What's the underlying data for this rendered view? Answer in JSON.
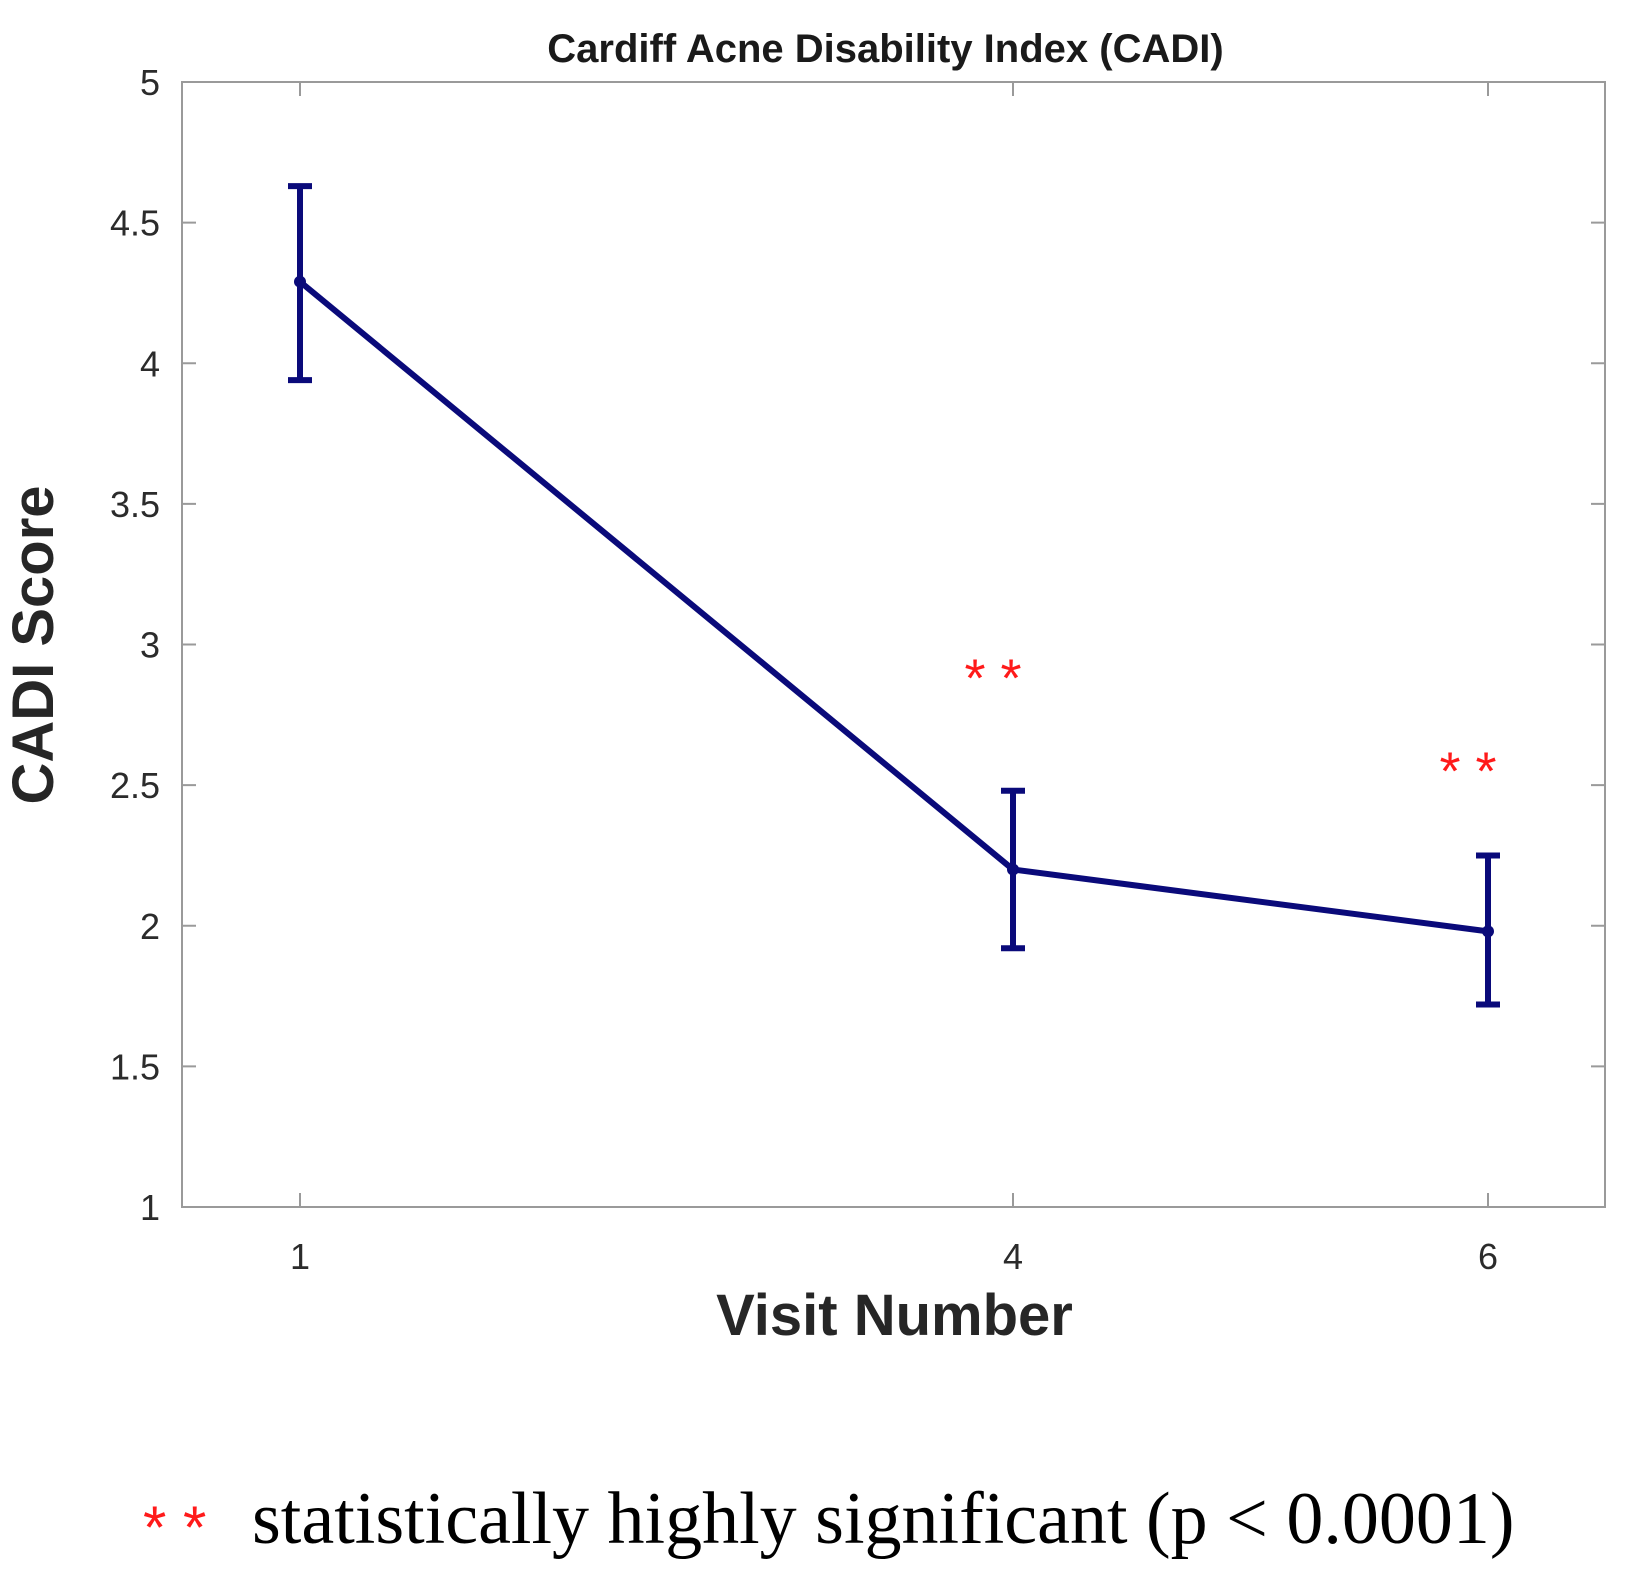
{
  "chart_data": {
    "type": "line",
    "title": "Cardiff Acne Disability Index (CADI)",
    "xlabel": "Visit Number",
    "ylabel": "CADI Score",
    "x_ticks": [
      "1",
      "4",
      "6"
    ],
    "y_ticks": [
      "1",
      "1.5",
      "2",
      "2.5",
      "3",
      "3.5",
      "4",
      "4.5",
      "5"
    ],
    "ylim": [
      1,
      5
    ],
    "grid": false,
    "series": [
      {
        "x": [
          1,
          4,
          6
        ],
        "y": [
          4.29,
          2.2,
          1.98
        ],
        "error_low": [
          3.94,
          1.92,
          1.72
        ],
        "error_high": [
          4.63,
          2.48,
          2.25
        ],
        "color": "#0a0a7a"
      }
    ],
    "annotations": [
      {
        "text": "* *",
        "x": 4,
        "y": 2.95,
        "color": "#ff1a1a"
      },
      {
        "text": "* *",
        "x": 6,
        "y": 2.62,
        "color": "#ff1a1a"
      }
    ]
  },
  "footnote": {
    "marker": "* *",
    "text": "statistically highly significant (p < 0.0001)"
  }
}
